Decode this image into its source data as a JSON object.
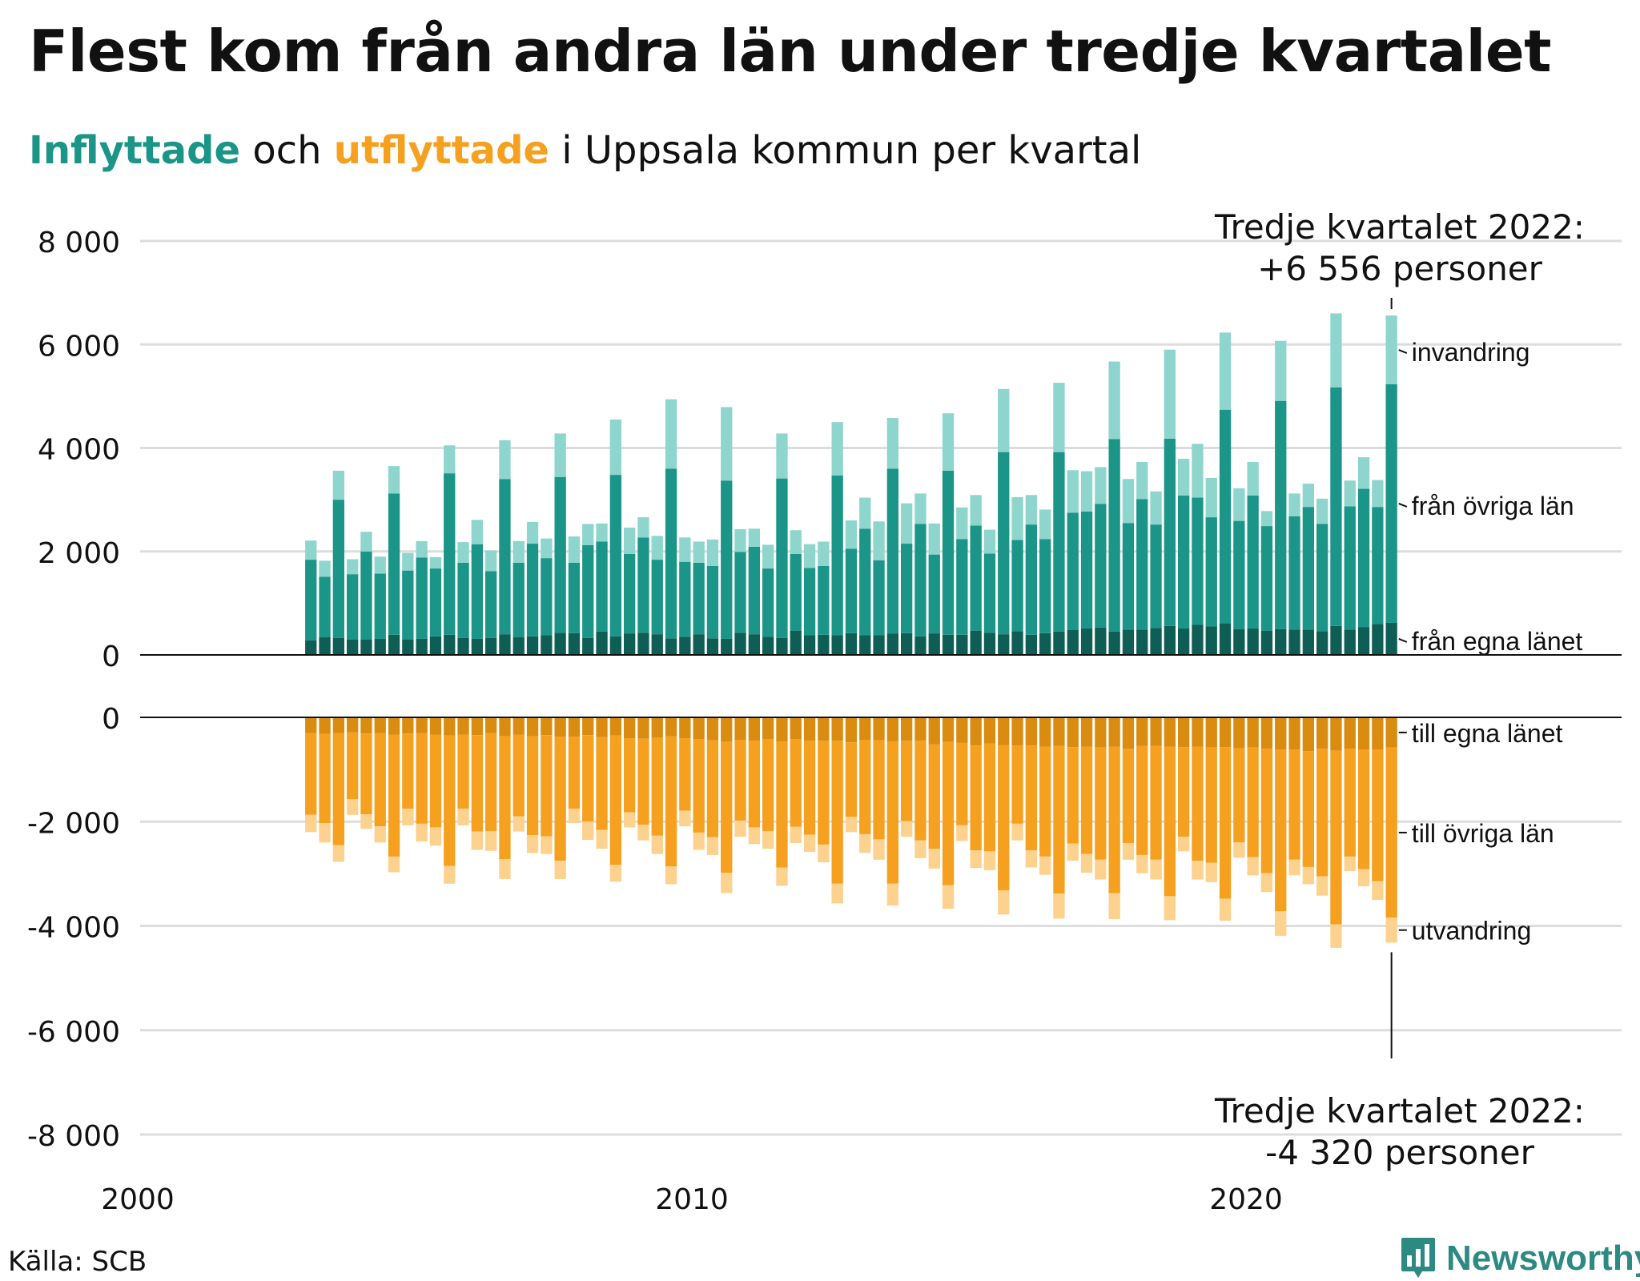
{
  "header": {
    "title": "Flest kom från andra län under tredje kvartalet",
    "subtitle_inflyttade": "Inflyttade",
    "subtitle_och": " och ",
    "subtitle_utflyttade": "utflyttade",
    "subtitle_rest": " i Uppsala kommun per kvartal"
  },
  "callouts": {
    "top_line1": "Tredje kvartalet 2022:",
    "top_line2": "+6 556 personer",
    "bottom_line1": "Tredje kvartalet 2022:",
    "bottom_line2": "-4 320 personer"
  },
  "footer": {
    "source": "Källa: SCB",
    "brand": "Newsworthy"
  },
  "colors": {
    "in_own": "#0e5e56",
    "in_other": "#1a9588",
    "in_immig": "#8ed5cd",
    "out_own": "#d98c10",
    "out_other": "#f6a020",
    "out_emig": "#fcd28e",
    "grid": "#dddddd",
    "brand": "#2d8a82"
  },
  "chart_data": {
    "type": "bar",
    "stacked": true,
    "x_axis": {
      "min": 2000,
      "max": 2025,
      "ticks": [
        2000,
        2010,
        2020
      ]
    },
    "upper_y": {
      "min": 0,
      "max": 8000,
      "ticks": [
        0,
        2000,
        4000,
        6000,
        8000
      ],
      "tick_labels": [
        "0",
        "2 000",
        "4 000",
        "6 000",
        "8 000"
      ]
    },
    "lower_y": {
      "min": -8000,
      "max": 0,
      "ticks": [
        0,
        -2000,
        -4000,
        -6000,
        -8000
      ],
      "tick_labels": [
        "0",
        "-2 000",
        "-4 000",
        "-6 000",
        "-8 000"
      ]
    },
    "grid": true,
    "first_quarter": "2003-Q1",
    "last_quarter": "2022-Q3",
    "inflyttade": [
      {
        "name": "från egna länet",
        "values": [
          280,
          340,
          330,
          300,
          300,
          310,
          390,
          300,
          310,
          360,
          390,
          330,
          310,
          330,
          400,
          340,
          360,
          380,
          430,
          420,
          330,
          450,
          360,
          410,
          430,
          400,
          320,
          350,
          400,
          320,
          310,
          430,
          400,
          350,
          330,
          470,
          380,
          390,
          380,
          420,
          380,
          380,
          410,
          420,
          360,
          410,
          390,
          390,
          470,
          430,
          400,
          460,
          390,
          420,
          450,
          480,
          510,
          530,
          450,
          490,
          490,
          520,
          560,
          510,
          580,
          550,
          610,
          500,
          510,
          470,
          500,
          490,
          490,
          460,
          560,
          490,
          540,
          600,
          620
        ]
      },
      {
        "name": "från övriga län",
        "values": [
          1560,
          1170,
          2670,
          1260,
          1700,
          1260,
          2730,
          1330,
          1570,
          1310,
          3120,
          1450,
          1830,
          1290,
          3000,
          1440,
          1790,
          1490,
          3010,
          1360,
          1790,
          1740,
          3120,
          1540,
          1840,
          1440,
          3280,
          1450,
          1380,
          1400,
          3060,
          1560,
          1690,
          1320,
          3080,
          1480,
          1300,
          1330,
          3090,
          1630,
          2060,
          1450,
          3190,
          1730,
          2170,
          1530,
          3170,
          1850,
          2030,
          1530,
          3520,
          1760,
          2130,
          1820,
          3470,
          2270,
          2260,
          2390,
          3720,
          2060,
          2520,
          2000,
          3620,
          2570,
          2460,
          2110,
          4130,
          2090,
          2570,
          2020,
          4410,
          2190,
          2370,
          2070,
          4610,
          2380,
          2670,
          2260,
          4610
        ]
      },
      {
        "name": "invandring",
        "values": [
          370,
          310,
          560,
          290,
          380,
          330,
          530,
          340,
          320,
          220,
          540,
          400,
          470,
          400,
          750,
          420,
          420,
          380,
          840,
          510,
          410,
          350,
          1070,
          510,
          390,
          460,
          1340,
          470,
          410,
          510,
          1420,
          440,
          350,
          460,
          870,
          460,
          460,
          470,
          1030,
          550,
          600,
          750,
          980,
          780,
          590,
          600,
          1110,
          610,
          590,
          460,
          1220,
          830,
          570,
          570,
          1340,
          820,
          780,
          710,
          1500,
          850,
          720,
          640,
          1720,
          710,
          1040,
          760,
          1490,
          630,
          650,
          290,
          1160,
          440,
          450,
          490,
          1430,
          500,
          610,
          520,
          1330
        ]
      }
    ],
    "utflyttade": [
      {
        "name": "till egna länet",
        "values": [
          -300,
          -320,
          -300,
          -290,
          -310,
          -300,
          -330,
          -310,
          -300,
          -330,
          -350,
          -330,
          -340,
          -300,
          -360,
          -330,
          -360,
          -340,
          -370,
          -370,
          -340,
          -380,
          -350,
          -400,
          -410,
          -390,
          -360,
          -400,
          -420,
          -440,
          -470,
          -430,
          -450,
          -420,
          -460,
          -420,
          -450,
          -450,
          -450,
          -480,
          -430,
          -440,
          -460,
          -450,
          -450,
          -520,
          -470,
          -490,
          -540,
          -500,
          -530,
          -540,
          -540,
          -560,
          -550,
          -570,
          -560,
          -580,
          -560,
          -600,
          -550,
          -550,
          -560,
          -570,
          -560,
          -580,
          -570,
          -590,
          -580,
          -600,
          -620,
          -620,
          -650,
          -600,
          -640,
          -600,
          -620,
          -620,
          -580
        ]
      },
      {
        "name": "till övriga län",
        "values": [
          -1570,
          -1710,
          -2150,
          -1280,
          -1550,
          -1790,
          -2340,
          -1440,
          -1740,
          -1780,
          -2500,
          -1420,
          -1850,
          -1880,
          -2360,
          -1570,
          -1900,
          -1940,
          -2380,
          -1380,
          -1660,
          -1780,
          -2480,
          -1420,
          -1650,
          -1880,
          -2500,
          -1390,
          -1790,
          -1860,
          -2510,
          -1550,
          -1660,
          -1760,
          -2420,
          -1680,
          -1800,
          -1990,
          -2740,
          -1430,
          -1810,
          -1900,
          -2730,
          -1540,
          -1910,
          -2000,
          -2750,
          -1580,
          -2010,
          -2070,
          -2790,
          -1500,
          -2010,
          -2110,
          -2830,
          -1850,
          -2060,
          -2150,
          -2810,
          -1810,
          -2090,
          -2180,
          -2870,
          -1720,
          -2190,
          -2210,
          -2910,
          -1810,
          -2100,
          -2390,
          -3100,
          -2110,
          -2220,
          -2450,
          -3330,
          -2070,
          -2290,
          -2520,
          -3260
        ]
      },
      {
        "name": "utvandring",
        "values": [
          -330,
          -370,
          -320,
          -300,
          -280,
          -310,
          -300,
          -320,
          -340,
          -350,
          -340,
          -320,
          -350,
          -380,
          -380,
          -290,
          -340,
          -340,
          -350,
          -280,
          -350,
          -360,
          -320,
          -290,
          -300,
          -350,
          -340,
          -300,
          -330,
          -340,
          -390,
          -310,
          -320,
          -340,
          -350,
          -310,
          -330,
          -340,
          -380,
          -290,
          -360,
          -390,
          -420,
          -300,
          -340,
          -380,
          -450,
          -300,
          -340,
          -360,
          -460,
          -320,
          -330,
          -350,
          -480,
          -330,
          -360,
          -380,
          -500,
          -320,
          -350,
          -380,
          -460,
          -280,
          -360,
          -370,
          -420,
          -290,
          -350,
          -360,
          -470,
          -300,
          -330,
          -370,
          -450,
          -280,
          -330,
          -360,
          -480
        ]
      }
    ],
    "series_labels": {
      "in_immig": "invandring",
      "in_other": "från övriga län",
      "in_own": "från egna länet",
      "out_own": "till egna länet",
      "out_other": "till övriga län",
      "out_emig": "utvandring"
    }
  }
}
